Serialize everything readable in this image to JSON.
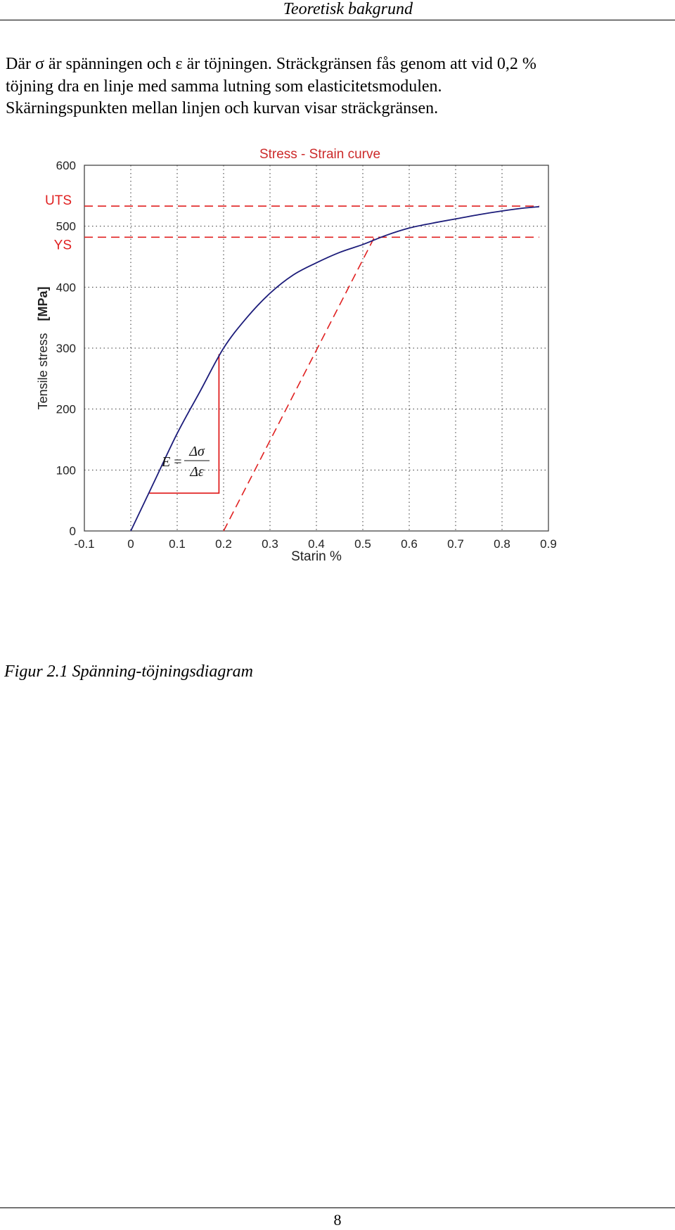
{
  "header": {
    "title": "Teoretisk bakgrund"
  },
  "body": {
    "lines": [
      "Där σ är spänningen och ε är töjningen. Sträckgränsen fås genom att vid 0,2 %",
      "töjning dra en linje med samma lutning som elasticitetsmodulen.",
      "Skärningspunkten mellan linjen och kurvan visar sträckgränsen."
    ]
  },
  "chart_data": {
    "type": "line",
    "title": "Stress - Strain curve",
    "xlabel": "Starin %",
    "ylabel": "Tensile stress",
    "ylabel_unit": "[MPa]",
    "xlim": [
      -0.1,
      0.9
    ],
    "ylim": [
      0,
      600
    ],
    "xticks": [
      "-0.1",
      "0",
      "0.1",
      "0.2",
      "0.3",
      "0.4",
      "0.5",
      "0.6",
      "0.7",
      "0.8",
      "0.9"
    ],
    "yticks": [
      "0",
      "100",
      "200",
      "300",
      "400",
      "500",
      "600"
    ],
    "grid": true,
    "series": [
      {
        "color": "#1c1c7a",
        "x": [
          0,
          0.05,
          0.1,
          0.15,
          0.2,
          0.25,
          0.3,
          0.35,
          0.4,
          0.45,
          0.5,
          0.55,
          0.6,
          0.65,
          0.7,
          0.75,
          0.8,
          0.85,
          0.88
        ],
        "y": [
          0,
          80,
          160,
          230,
          300,
          350,
          390,
          420,
          440,
          457,
          470,
          485,
          497,
          505,
          512,
          519,
          525,
          530,
          532
        ]
      }
    ],
    "offset_line": {
      "color": "#e02020",
      "x": [
        0.2,
        0.525
      ],
      "y": [
        0,
        482
      ]
    },
    "reference_lines": [
      {
        "label": "UTS",
        "y": 533,
        "color": "#e02020"
      },
      {
        "label": "YS",
        "y": 482,
        "color": "#e02020"
      }
    ],
    "slope_triangle": {
      "color": "#e02020",
      "x1": 0.04,
      "x2": 0.19,
      "y1": 62,
      "y2": 290
    },
    "formula": {
      "lhs": "E",
      "eq": "=",
      "numerator": "Δσ",
      "denominator": "Δε"
    }
  },
  "caption": "Figur 2.1 Spänning-töjningsdiagram",
  "footer": {
    "page_number": "8"
  }
}
